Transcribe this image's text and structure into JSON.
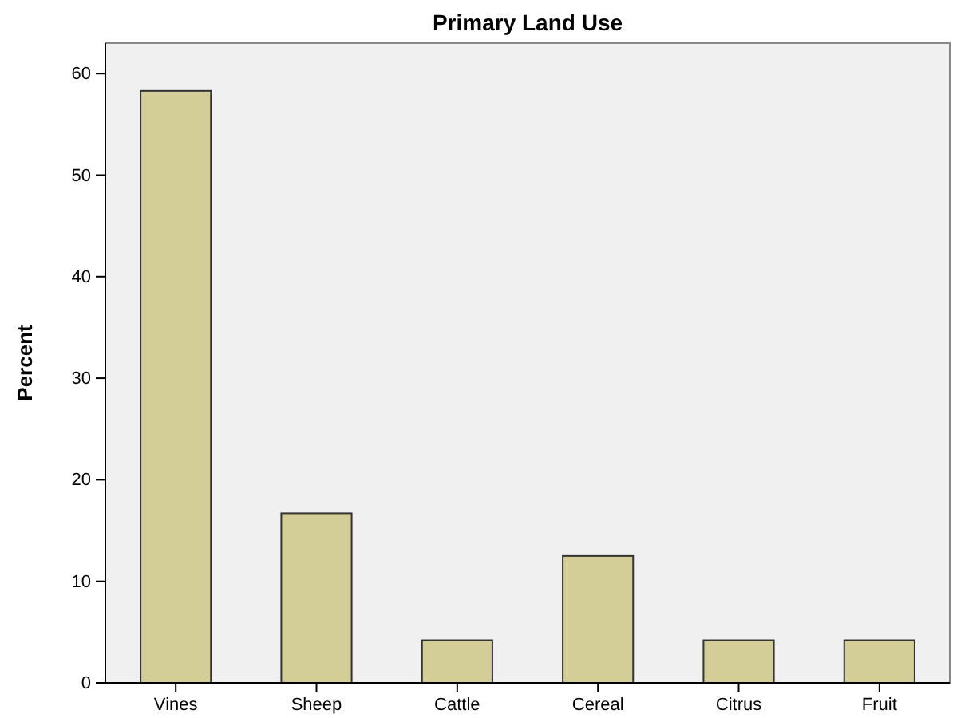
{
  "chart_data": {
    "type": "bar",
    "title": "Primary Land Use",
    "ylabel": "Percent",
    "categories": [
      "Vines",
      "Sheep",
      "Cattle",
      "Cereal",
      "Citrus",
      "Fruit"
    ],
    "values": [
      58.3,
      16.7,
      4.2,
      12.5,
      4.2,
      4.2
    ],
    "color": "#d3ce97",
    "ylim": [
      0,
      63
    ],
    "yticks": [
      0,
      10,
      20,
      30,
      40,
      50,
      60
    ],
    "grid": false
  }
}
